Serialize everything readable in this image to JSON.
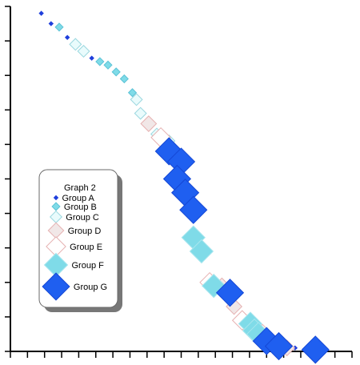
{
  "chart_data": {
    "type": "scatter",
    "title": "",
    "xlabel": "",
    "ylabel": "",
    "xlim": [
      0,
      4.2
    ],
    "ylim": [
      0,
      10
    ],
    "x_tick_count": 20,
    "y_tick_count": 10,
    "tick_labels_shown": false,
    "grid": false,
    "legend": {
      "title": "Graph 2",
      "position": "left-center"
    },
    "series": [
      {
        "name": "Group A",
        "marker": "diamond",
        "marker_size": 1,
        "fill": "#1f3fdc",
        "stroke": "#1f3fdc",
        "points": [
          [
            0.38,
            9.8
          ],
          [
            0.5,
            9.5
          ],
          [
            0.7,
            9.1
          ],
          [
            1.0,
            8.5
          ],
          [
            3.5,
            0.1
          ]
        ]
      },
      {
        "name": "Group B",
        "marker": "diamond",
        "marker_size": 2,
        "fill": "#7fdbe8",
        "stroke": "#5cc3d6",
        "points": [
          [
            0.6,
            9.4
          ],
          [
            1.1,
            8.4
          ],
          [
            1.2,
            8.3
          ],
          [
            1.3,
            8.1
          ],
          [
            1.4,
            7.9
          ],
          [
            1.5,
            7.5
          ]
        ]
      },
      {
        "name": "Group C",
        "marker": "diamond",
        "marker_size": 3,
        "fill": "#e9fbfc",
        "stroke": "#9ad7df",
        "points": [
          [
            0.8,
            8.9
          ],
          [
            0.9,
            8.7
          ],
          [
            1.55,
            7.3
          ],
          [
            1.6,
            6.9
          ],
          [
            1.8,
            6.3
          ],
          [
            1.95,
            6.1
          ]
        ]
      },
      {
        "name": "Group D",
        "marker": "diamond",
        "marker_size": 4,
        "fill": "#f1e7e7",
        "stroke": "#e6b1b1",
        "points": [
          [
            1.7,
            6.6
          ],
          [
            2.6,
            1.9
          ],
          [
            2.75,
            1.3
          ],
          [
            3.4,
            0.1
          ]
        ]
      },
      {
        "name": "Group E",
        "marker": "diamond",
        "marker_size": 5,
        "fill": "#ffffff",
        "stroke": "#e6b1b1",
        "points": [
          [
            1.85,
            6.2
          ],
          [
            2.45,
            2.0
          ],
          [
            2.85,
            0.9
          ],
          [
            3.1,
            0.5
          ],
          [
            3.15,
            0.4
          ]
        ]
      },
      {
        "name": "Group F",
        "marker": "diamond",
        "marker_size": 6,
        "fill": "#7fdbe8",
        "stroke": "#a8e6ee",
        "points": [
          [
            2.25,
            3.3
          ],
          [
            2.35,
            2.9
          ],
          [
            2.5,
            1.9
          ],
          [
            2.95,
            0.8
          ],
          [
            3.0,
            0.6
          ],
          [
            3.05,
            0.5
          ]
        ]
      },
      {
        "name": "Group G",
        "marker": "diamond",
        "marker_size": 7,
        "fill": "#1f5ff0",
        "stroke": "#1447d6",
        "points": [
          [
            1.95,
            5.8
          ],
          [
            2.1,
            5.5
          ],
          [
            2.05,
            5.0
          ],
          [
            2.15,
            4.6
          ],
          [
            2.25,
            4.1
          ],
          [
            2.7,
            1.7
          ],
          [
            3.15,
            0.3
          ],
          [
            3.3,
            0.15
          ],
          [
            3.75,
            0.05
          ]
        ]
      }
    ]
  },
  "colors": {
    "axis": "#000000",
    "legend_border": "#6a6a6a",
    "legend_shadow": "#777777",
    "background": "#ffffff"
  }
}
